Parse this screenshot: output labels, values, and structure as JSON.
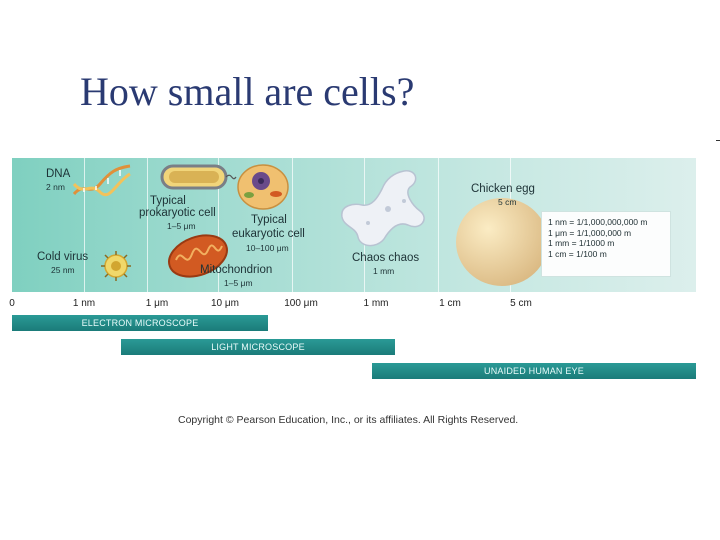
{
  "title": "How small are cells?",
  "figure": {
    "dna": {
      "name": "DNA",
      "size": "2 nm"
    },
    "virus": {
      "name": "Cold virus",
      "size": "25 nm"
    },
    "prokaryote": {
      "name_line1": "Typical",
      "name_line2": "prokaryotic cell",
      "size": "1–5 μm"
    },
    "mitochondrion": {
      "name": "Mitochondrion",
      "size": "1–5 μm"
    },
    "eukaryote": {
      "name_line1": "Typical",
      "name_line2": "eukaryotic cell",
      "size": "10–100 μm"
    },
    "chaos": {
      "name": "Chaos chaos",
      "size": "1 mm"
    },
    "egg": {
      "name": "Chicken egg",
      "size": "5 cm"
    },
    "conversions": [
      "1 nm = 1/1,000,000,000 m",
      "1 μm = 1/1,000,000 m",
      "1 mm = 1/1000 m",
      "1 cm = 1/100 m"
    ],
    "scale_ticks": [
      "0",
      "1 nm",
      "1 μm",
      "10 μm",
      "100 μm",
      "1 mm",
      "1 cm",
      "5 cm"
    ],
    "bars": {
      "electron": "ELECTRON MICROSCOPE",
      "light": "LIGHT MICROSCOPE",
      "eye": "UNAIDED HUMAN EYE"
    },
    "colors": {
      "accent": "#1b7b79",
      "panel": "#a6ddd3",
      "title": "#2a3a72"
    }
  },
  "copyright": "Copyright © Pearson Education, Inc., or its affiliates. All Rights Reserved."
}
